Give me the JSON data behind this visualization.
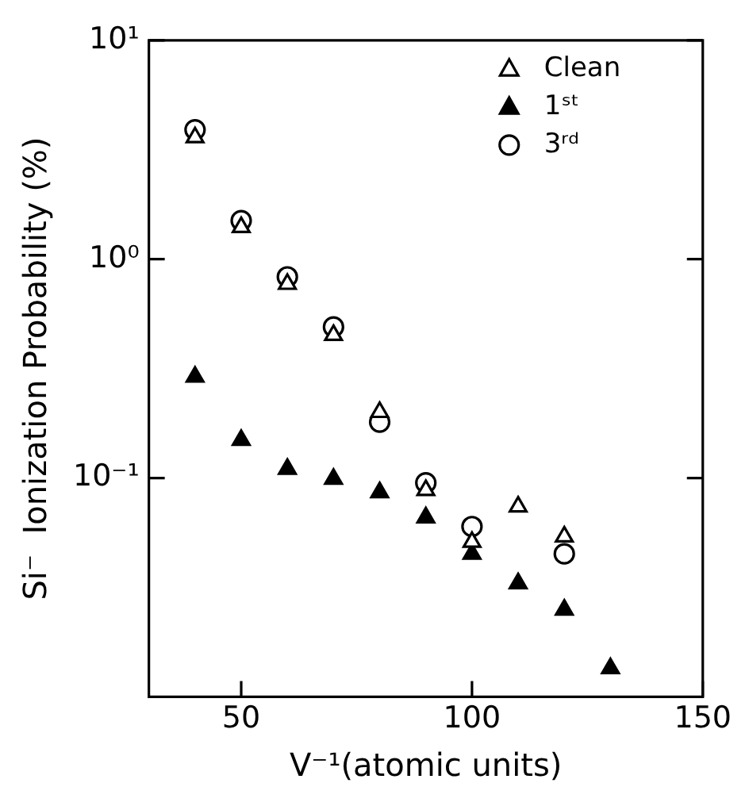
{
  "chart_data": {
    "type": "scatter",
    "xlabel": "V⁻¹(atomic units)",
    "ylabel": "Si⁻  Ionization Probability (%)",
    "xlim": [
      30,
      150
    ],
    "xticks": [
      50,
      100,
      150
    ],
    "ylim": [
      0.01,
      10
    ],
    "yticks": [
      {
        "value": 10,
        "label": "10¹"
      },
      {
        "value": 1,
        "label": "10⁰"
      },
      {
        "value": 0.1,
        "label": "10⁻¹"
      }
    ],
    "log": "y",
    "grid": false,
    "legend": "top right",
    "series": [
      {
        "name": "Clean",
        "color": "#ffffff",
        "marker": "triangle",
        "x": [
          40,
          50,
          60,
          70,
          80,
          90,
          100,
          110,
          120
        ],
        "values": [
          3.6,
          1.4,
          0.77,
          0.45,
          0.2,
          0.088,
          0.051,
          0.074,
          0.054
        ]
      },
      {
        "name": "1ˢᵗ",
        "color": "#000000",
        "marker": "triangle",
        "x": [
          40,
          50,
          60,
          70,
          80,
          90,
          100,
          110,
          120,
          130
        ],
        "values": [
          0.29,
          0.149,
          0.11,
          0.099,
          0.086,
          0.066,
          0.045,
          0.033,
          0.025,
          0.0135
        ]
      },
      {
        "name": "3ʳᵈ",
        "color": "#ffffff",
        "marker": "circle",
        "x": [
          40,
          50,
          60,
          70,
          80,
          90,
          100,
          120
        ],
        "values": [
          3.9,
          1.5,
          0.83,
          0.49,
          0.18,
          0.095,
          0.06,
          0.045
        ]
      }
    ]
  }
}
